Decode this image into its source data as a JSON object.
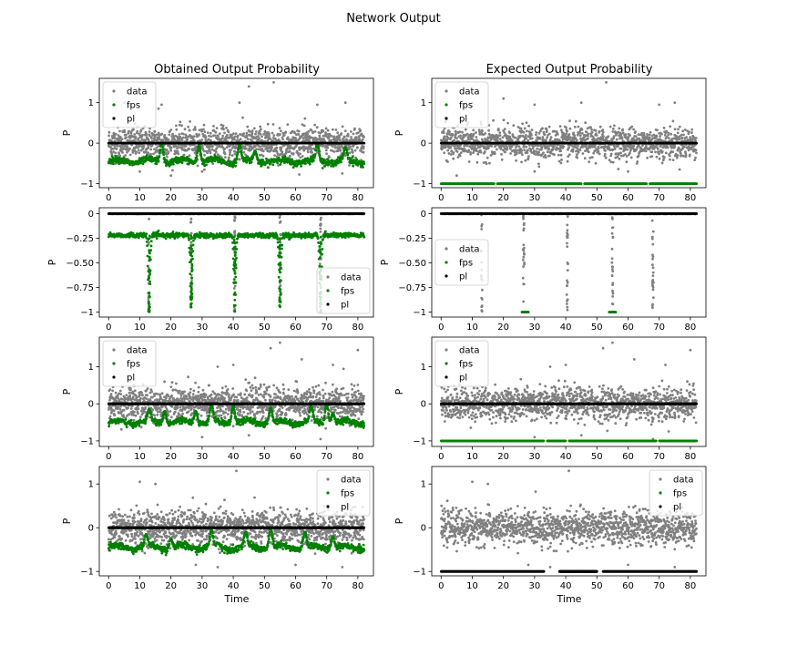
{
  "figure": {
    "title": "Network Output",
    "col_titles": [
      "Obtained Output Probability",
      "Expected Output Probability"
    ],
    "xlabel": "Time",
    "ylabel": "P"
  },
  "colors": {
    "data": "#808080",
    "fps": "#008000",
    "pl": "#000000"
  },
  "chart_data": [
    {
      "type": "scatter",
      "row": 0,
      "col": 0,
      "xlim": [
        -3,
        85
      ],
      "ylim": [
        -1.1,
        1.6
      ],
      "xticks": [
        0,
        10,
        20,
        30,
        40,
        50,
        60,
        70,
        80
      ],
      "yticks": [
        -1,
        0,
        1
      ],
      "legend": "top-left",
      "series": [
        {
          "name": "data",
          "pattern": "noise",
          "noise": {
            "center": 0,
            "spread": 0.35,
            "outliers": [
              [
                16,
                0.85
              ],
              [
                17,
                0.95
              ],
              [
                42,
                1.0
              ],
              [
                45,
                1.4
              ],
              [
                53,
                1.5
              ],
              [
                67,
                0.95
              ],
              [
                76,
                1.0
              ],
              [
                5,
                1.0
              ],
              [
                20,
                -0.8
              ],
              [
                75,
                -0.75
              ],
              [
                10,
                -0.7
              ],
              [
                30,
                -0.7
              ]
            ]
          }
        },
        {
          "name": "fps",
          "pattern": "baseline",
          "baseline": -0.45,
          "dips": [
            [
              17,
              0.0
            ],
            [
              29,
              -0.05
            ],
            [
              42,
              -0.05
            ],
            [
              47,
              -0.2
            ],
            [
              67,
              0.0
            ],
            [
              76,
              -0.1
            ]
          ]
        },
        {
          "name": "pl",
          "pattern": "constant",
          "value": 0
        }
      ]
    },
    {
      "type": "scatter",
      "row": 0,
      "col": 1,
      "xlim": [
        -3,
        85
      ],
      "ylim": [
        -1.1,
        1.6
      ],
      "xticks": [
        0,
        10,
        20,
        30,
        40,
        50,
        60,
        70,
        80
      ],
      "yticks": [
        -1,
        0,
        1
      ],
      "legend": "top-left",
      "series": [
        {
          "name": "data",
          "pattern": "noise",
          "noise": {
            "center": 0,
            "spread": 0.35,
            "outliers": [
              [
                10,
                1.0
              ],
              [
                20,
                1.1
              ],
              [
                30,
                0.95
              ],
              [
                45,
                1.0
              ],
              [
                53,
                1.5
              ],
              [
                70,
                0.95
              ],
              [
                75,
                1.0
              ],
              [
                5,
                -0.8
              ],
              [
                30,
                -0.7
              ],
              [
                60,
                -0.7
              ]
            ]
          }
        },
        {
          "name": "fps",
          "pattern": "constant-gaps",
          "value": -1,
          "gaps": [
            [
              17,
              18
            ],
            [
              45,
              46
            ],
            [
              66,
              67
            ]
          ]
        },
        {
          "name": "pl",
          "pattern": "constant",
          "value": 0
        }
      ]
    },
    {
      "type": "scatter",
      "row": 1,
      "col": 0,
      "xlim": [
        -3,
        85
      ],
      "ylim": [
        -1.05,
        0.06
      ],
      "xticks": [
        0,
        10,
        20,
        30,
        40,
        50,
        60,
        70,
        80
      ],
      "yticks": [
        0,
        -0.25,
        -0.5,
        -0.75,
        -1
      ],
      "legend": "bottom-right",
      "series": [
        {
          "name": "data",
          "pattern": "near-zero-spikes",
          "spikes": [
            [
              13,
              -1.0
            ],
            [
              26.5,
              -0.95
            ],
            [
              40.5,
              -1.0
            ],
            [
              55,
              -0.95
            ],
            [
              68,
              -1.0
            ]
          ]
        },
        {
          "name": "fps",
          "pattern": "baseline-spikes",
          "baseline": -0.22,
          "spikes": [
            [
              13,
              -1.0
            ],
            [
              26.5,
              -0.95
            ],
            [
              40.5,
              -1.0
            ],
            [
              55,
              -0.95
            ],
            [
              68,
              -1.0
            ]
          ]
        },
        {
          "name": "pl",
          "pattern": "constant",
          "value": 0
        }
      ]
    },
    {
      "type": "scatter",
      "row": 1,
      "col": 1,
      "xlim": [
        -3,
        85
      ],
      "ylim": [
        -1.05,
        0.06
      ],
      "xticks": [
        0,
        10,
        20,
        30,
        40,
        50,
        60,
        70,
        80
      ],
      "yticks": [
        0,
        -0.25,
        -0.5,
        -0.75,
        -1
      ],
      "legend": "middle-left",
      "series": [
        {
          "name": "data",
          "pattern": "near-zero-spikes",
          "spikes": [
            [
              13,
              -1.0
            ],
            [
              26.5,
              -0.95
            ],
            [
              40.5,
              -1.0
            ],
            [
              55,
              -0.95
            ],
            [
              68,
              -1.0
            ]
          ]
        },
        {
          "name": "fps",
          "pattern": "segments",
          "segments": [
            [
              26,
              28,
              -1.0
            ],
            [
              54,
              56,
              -1.0
            ]
          ]
        },
        {
          "name": "pl",
          "pattern": "constant",
          "value": 0
        }
      ]
    },
    {
      "type": "scatter",
      "row": 2,
      "col": 0,
      "xlim": [
        -3,
        85
      ],
      "ylim": [
        -1.15,
        1.8
      ],
      "xticks": [
        0,
        10,
        20,
        30,
        40,
        50,
        60,
        70,
        80
      ],
      "yticks": [
        -1,
        0,
        1
      ],
      "legend": "top-left",
      "series": [
        {
          "name": "data",
          "pattern": "noise",
          "noise": {
            "center": 0,
            "spread": 0.4,
            "outliers": [
              [
                35,
                1.0
              ],
              [
                40,
                1.05
              ],
              [
                52,
                1.5
              ],
              [
                55,
                1.65
              ],
              [
                62,
                1.2
              ],
              [
                72,
                1.05
              ],
              [
                80,
                1.45
              ],
              [
                30,
                -0.9
              ],
              [
                68,
                -0.95
              ],
              [
                45,
                -0.85
              ]
            ]
          }
        },
        {
          "name": "fps",
          "pattern": "baseline",
          "baseline": -0.5,
          "dips": [
            [
              13,
              -0.15
            ],
            [
              18,
              -0.2
            ],
            [
              28,
              -0.2
            ],
            [
              33,
              0.0
            ],
            [
              40,
              -0.05
            ],
            [
              52,
              -0.1
            ],
            [
              65,
              -0.05
            ],
            [
              70,
              0.0
            ],
            [
              72,
              -0.25
            ]
          ]
        },
        {
          "name": "pl",
          "pattern": "constant",
          "value": 0
        }
      ]
    },
    {
      "type": "scatter",
      "row": 2,
      "col": 1,
      "xlim": [
        -3,
        85
      ],
      "ylim": [
        -1.15,
        1.8
      ],
      "xticks": [
        0,
        10,
        20,
        30,
        40,
        50,
        60,
        70,
        80
      ],
      "yticks": [
        -1,
        0,
        1
      ],
      "legend": "top-left",
      "series": [
        {
          "name": "data",
          "pattern": "noise",
          "noise": {
            "center": 0,
            "spread": 0.4,
            "outliers": [
              [
                35,
                1.0
              ],
              [
                40,
                1.05
              ],
              [
                52,
                1.5
              ],
              [
                55,
                1.65
              ],
              [
                62,
                1.2
              ],
              [
                72,
                1.05
              ],
              [
                80,
                1.45
              ],
              [
                30,
                -0.9
              ],
              [
                68,
                -0.95
              ],
              [
                45,
                -0.85
              ]
            ]
          }
        },
        {
          "name": "fps",
          "pattern": "constant-gaps",
          "value": -1,
          "gaps": [
            [
              33,
              34
            ],
            [
              40,
              41
            ],
            [
              69,
              70
            ]
          ]
        },
        {
          "name": "pl",
          "pattern": "constant",
          "value": 0
        }
      ]
    },
    {
      "type": "scatter",
      "row": 3,
      "col": 0,
      "xlim": [
        -3,
        85
      ],
      "ylim": [
        -1.1,
        1.4
      ],
      "xticks": [
        0,
        10,
        20,
        30,
        40,
        50,
        60,
        70,
        80
      ],
      "yticks": [
        -1,
        0,
        1
      ],
      "legend": "top-right",
      "series": [
        {
          "name": "data",
          "pattern": "noise",
          "noise": {
            "center": 0,
            "spread": 0.35,
            "outliers": [
              [
                10,
                1.05
              ],
              [
                15,
                1.0
              ],
              [
                41,
                1.3
              ],
              [
                28,
                -0.85
              ],
              [
                35,
                -0.9
              ],
              [
                60,
                -0.85
              ],
              [
                75,
                -0.9
              ]
            ]
          }
        },
        {
          "name": "fps",
          "pattern": "baseline",
          "baseline": -0.45,
          "dips": [
            [
              12,
              -0.15
            ],
            [
              20,
              -0.25
            ],
            [
              33,
              -0.05
            ],
            [
              35,
              -0.35
            ],
            [
              44,
              -0.1
            ],
            [
              52,
              0.0
            ],
            [
              63,
              -0.1
            ],
            [
              72,
              -0.2
            ]
          ]
        },
        {
          "name": "pl",
          "pattern": "constant",
          "value": 0
        }
      ]
    },
    {
      "type": "scatter",
      "row": 3,
      "col": 1,
      "xlim": [
        -3,
        85
      ],
      "ylim": [
        -1.1,
        1.4
      ],
      "xticks": [
        0,
        10,
        20,
        30,
        40,
        50,
        60,
        70,
        80
      ],
      "yticks": [
        -1,
        0,
        1
      ],
      "legend": "top-right",
      "series": [
        {
          "name": "data",
          "pattern": "noise",
          "noise": {
            "center": 0,
            "spread": 0.35,
            "outliers": [
              [
                10,
                1.05
              ],
              [
                15,
                1.0
              ],
              [
                41,
                1.3
              ],
              [
                28,
                -0.85
              ],
              [
                35,
                -0.9
              ],
              [
                60,
                -0.85
              ],
              [
                75,
                -0.9
              ]
            ]
          }
        },
        {
          "name": "fps",
          "pattern": "none"
        },
        {
          "name": "pl",
          "pattern": "segments",
          "segments": [
            [
              0,
              33,
              -1.0
            ],
            [
              38,
              50,
              -1.0
            ],
            [
              52,
              82,
              -1.0
            ]
          ]
        }
      ]
    }
  ]
}
